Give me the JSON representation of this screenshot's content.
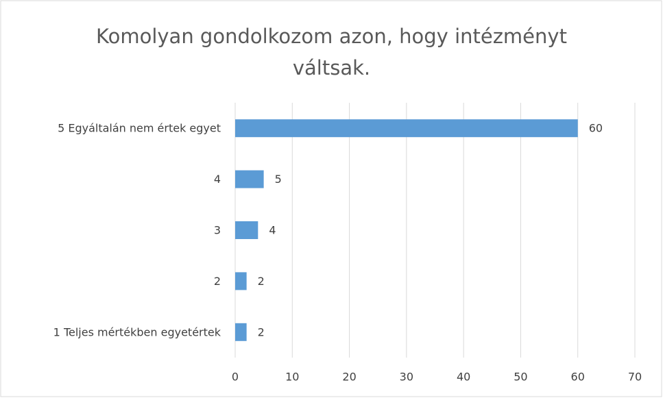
{
  "chart_data": {
    "type": "bar",
    "title": "Komolyan gondolkozom azon, hogy intézményt váltsak.",
    "categories": [
      "5 Egyáltalán nem értek egyet",
      "4",
      "3",
      "2",
      "1 Teljes mértékben egyetértek"
    ],
    "values": [
      60,
      5,
      4,
      2,
      2
    ],
    "color": "#5b9bd5",
    "xlim": [
      0,
      70
    ],
    "xticks": [
      0,
      10,
      20,
      30,
      40,
      50,
      60,
      70
    ],
    "grid": true
  }
}
